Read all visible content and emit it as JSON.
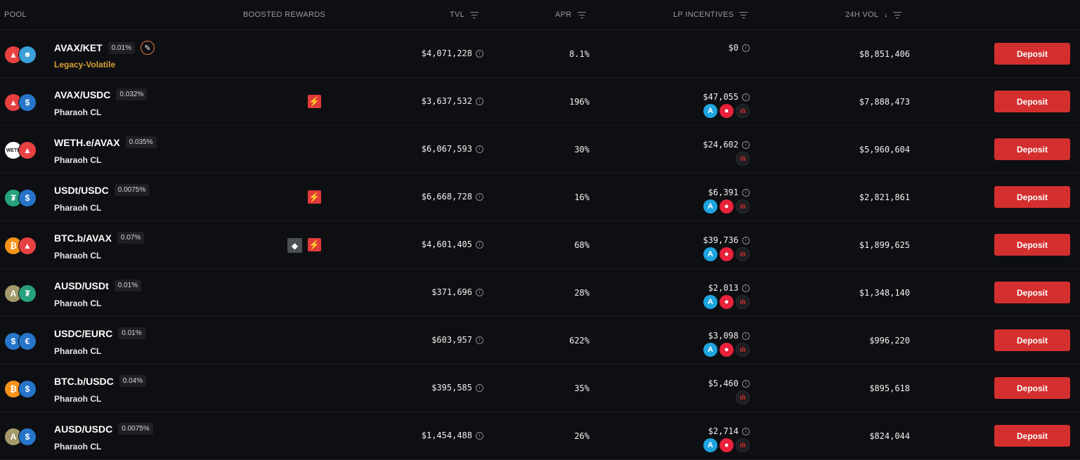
{
  "header": {
    "pool": "POOL",
    "boosted": "BOOSTED REWARDS",
    "tvl": "TVL",
    "apr": "APR",
    "lp": "LP INCENTIVES",
    "vol": "24H VOL",
    "vol_sort_arrow": "↓"
  },
  "deposit_label": "Deposit",
  "info_glyph": "i",
  "icons": {
    "bolt": "⚡",
    "gem": "◆",
    "wrench": "✎",
    "lp_blue": "A",
    "lp_red": "●",
    "lp_dark": "ıIı"
  },
  "rows": [
    {
      "t1": "▲",
      "t2": "☻",
      "pair": "AVAX/KET",
      "fee": "0.01%",
      "type": "Legacy-Volatile",
      "tvl": "$4,071,228",
      "apr": "8.1%",
      "lp": "$0",
      "vol": "$8,851,406"
    },
    {
      "t1": "▲",
      "t2": "$",
      "pair": "AVAX/USDC",
      "fee": "0.032%",
      "type": "Pharaoh CL",
      "tvl": "$3,637,532",
      "apr": "196%",
      "lp": "$47,055",
      "vol": "$7,888,473"
    },
    {
      "t1": "WETH",
      "t2": "▲",
      "pair": "WETH.e/AVAX",
      "fee": "0.035%",
      "type": "Pharaoh CL",
      "tvl": "$6,067,593",
      "apr": "30%",
      "lp": "$24,602",
      "vol": "$5,960,604"
    },
    {
      "t1": "₮",
      "t2": "$",
      "pair": "USDt/USDC",
      "fee": "0.0075%",
      "type": "Pharaoh CL",
      "tvl": "$6,668,728",
      "apr": "16%",
      "lp": "$6,391",
      "vol": "$2,821,861"
    },
    {
      "t1": "₿",
      "t2": "▲",
      "pair": "BTC.b/AVAX",
      "fee": "0.07%",
      "type": "Pharaoh CL",
      "tvl": "$4,601,405",
      "apr": "68%",
      "lp": "$39,736",
      "vol": "$1,899,625"
    },
    {
      "t1": "A",
      "t2": "₮",
      "pair": "AUSD/USDt",
      "fee": "0.01%",
      "type": "Pharaoh CL",
      "tvl": "$371,696",
      "apr": "28%",
      "lp": "$2,013",
      "vol": "$1,348,140"
    },
    {
      "t1": "$",
      "t2": "€",
      "pair": "USDC/EURC",
      "fee": "0.01%",
      "type": "Pharaoh CL",
      "tvl": "$603,957",
      "apr": "622%",
      "lp": "$3,098",
      "vol": "$996,220"
    },
    {
      "t1": "₿",
      "t2": "$",
      "pair": "BTC.b/USDC",
      "fee": "0.04%",
      "type": "Pharaoh CL",
      "tvl": "$395,585",
      "apr": "35%",
      "lp": "$5,460",
      "vol": "$895,618"
    },
    {
      "t1": "A",
      "t2": "$",
      "pair": "AUSD/USDC",
      "fee": "0.0075%",
      "type": "Pharaoh CL",
      "tvl": "$1,454,488",
      "apr": "26%",
      "lp": "$2,714",
      "vol": "$824,044"
    }
  ]
}
